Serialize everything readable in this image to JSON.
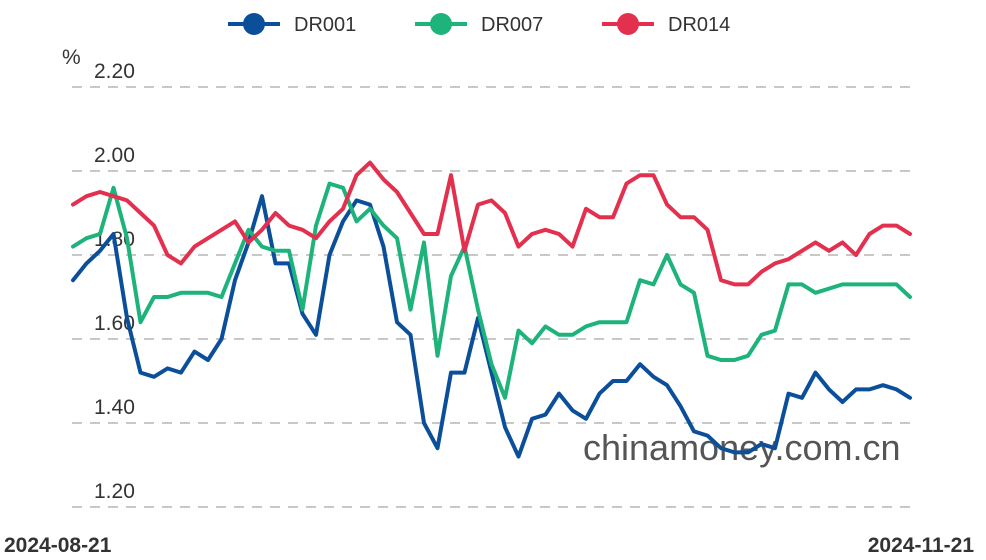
{
  "chart_data": {
    "type": "line",
    "unit": "%",
    "y_ticks": [
      "2.20",
      "2.00",
      "1.80",
      "1.60",
      "1.40",
      "1.20"
    ],
    "ylim": [
      1.2,
      2.2
    ],
    "x_start_label": "2024-08-21",
    "x_end_label": "2024-11-21",
    "grid": true,
    "legend_position": "top-center",
    "watermark": "chinamoney.com.cn",
    "series": [
      {
        "name": "DR001",
        "color": "#0b4f9a",
        "values": [
          1.74,
          1.78,
          1.81,
          1.85,
          1.65,
          1.52,
          1.51,
          1.53,
          1.52,
          1.57,
          1.55,
          1.6,
          1.74,
          1.83,
          1.94,
          1.78,
          1.78,
          1.66,
          1.61,
          1.8,
          1.88,
          1.93,
          1.92,
          1.82,
          1.64,
          1.61,
          1.4,
          1.34,
          1.52,
          1.52,
          1.65,
          1.52,
          1.39,
          1.32,
          1.41,
          1.42,
          1.47,
          1.43,
          1.41,
          1.47,
          1.5,
          1.5,
          1.54,
          1.51,
          1.49,
          1.44,
          1.38,
          1.37,
          1.34,
          1.33,
          1.33,
          1.35,
          1.34,
          1.47,
          1.46,
          1.52,
          1.48,
          1.45,
          1.48,
          1.48,
          1.49,
          1.48,
          1.46
        ]
      },
      {
        "name": "DR007",
        "color": "#1db37b",
        "values": [
          1.82,
          1.84,
          1.85,
          1.96,
          1.84,
          1.64,
          1.7,
          1.7,
          1.71,
          1.71,
          1.71,
          1.7,
          1.78,
          1.86,
          1.82,
          1.81,
          1.81,
          1.67,
          1.87,
          1.97,
          1.96,
          1.88,
          1.91,
          1.87,
          1.84,
          1.67,
          1.83,
          1.56,
          1.75,
          1.82,
          1.67,
          1.54,
          1.46,
          1.62,
          1.59,
          1.63,
          1.61,
          1.61,
          1.63,
          1.64,
          1.64,
          1.64,
          1.74,
          1.73,
          1.8,
          1.73,
          1.71,
          1.56,
          1.55,
          1.55,
          1.56,
          1.61,
          1.62,
          1.73,
          1.73,
          1.71,
          1.72,
          1.73,
          1.73,
          1.73,
          1.73,
          1.73,
          1.7
        ]
      },
      {
        "name": "DR014",
        "color": "#e3304e",
        "values": [
          1.92,
          1.94,
          1.95,
          1.94,
          1.93,
          1.9,
          1.87,
          1.8,
          1.78,
          1.82,
          1.84,
          1.86,
          1.88,
          1.83,
          1.86,
          1.9,
          1.87,
          1.86,
          1.84,
          1.88,
          1.91,
          1.99,
          2.02,
          1.98,
          1.95,
          1.9,
          1.85,
          1.85,
          1.99,
          1.81,
          1.92,
          1.93,
          1.9,
          1.82,
          1.85,
          1.86,
          1.85,
          1.82,
          1.91,
          1.89,
          1.89,
          1.97,
          1.99,
          1.99,
          1.92,
          1.89,
          1.89,
          1.86,
          1.74,
          1.73,
          1.73,
          1.76,
          1.78,
          1.79,
          1.81,
          1.83,
          1.81,
          1.83,
          1.8,
          1.85,
          1.87,
          1.87,
          1.85
        ]
      }
    ]
  }
}
